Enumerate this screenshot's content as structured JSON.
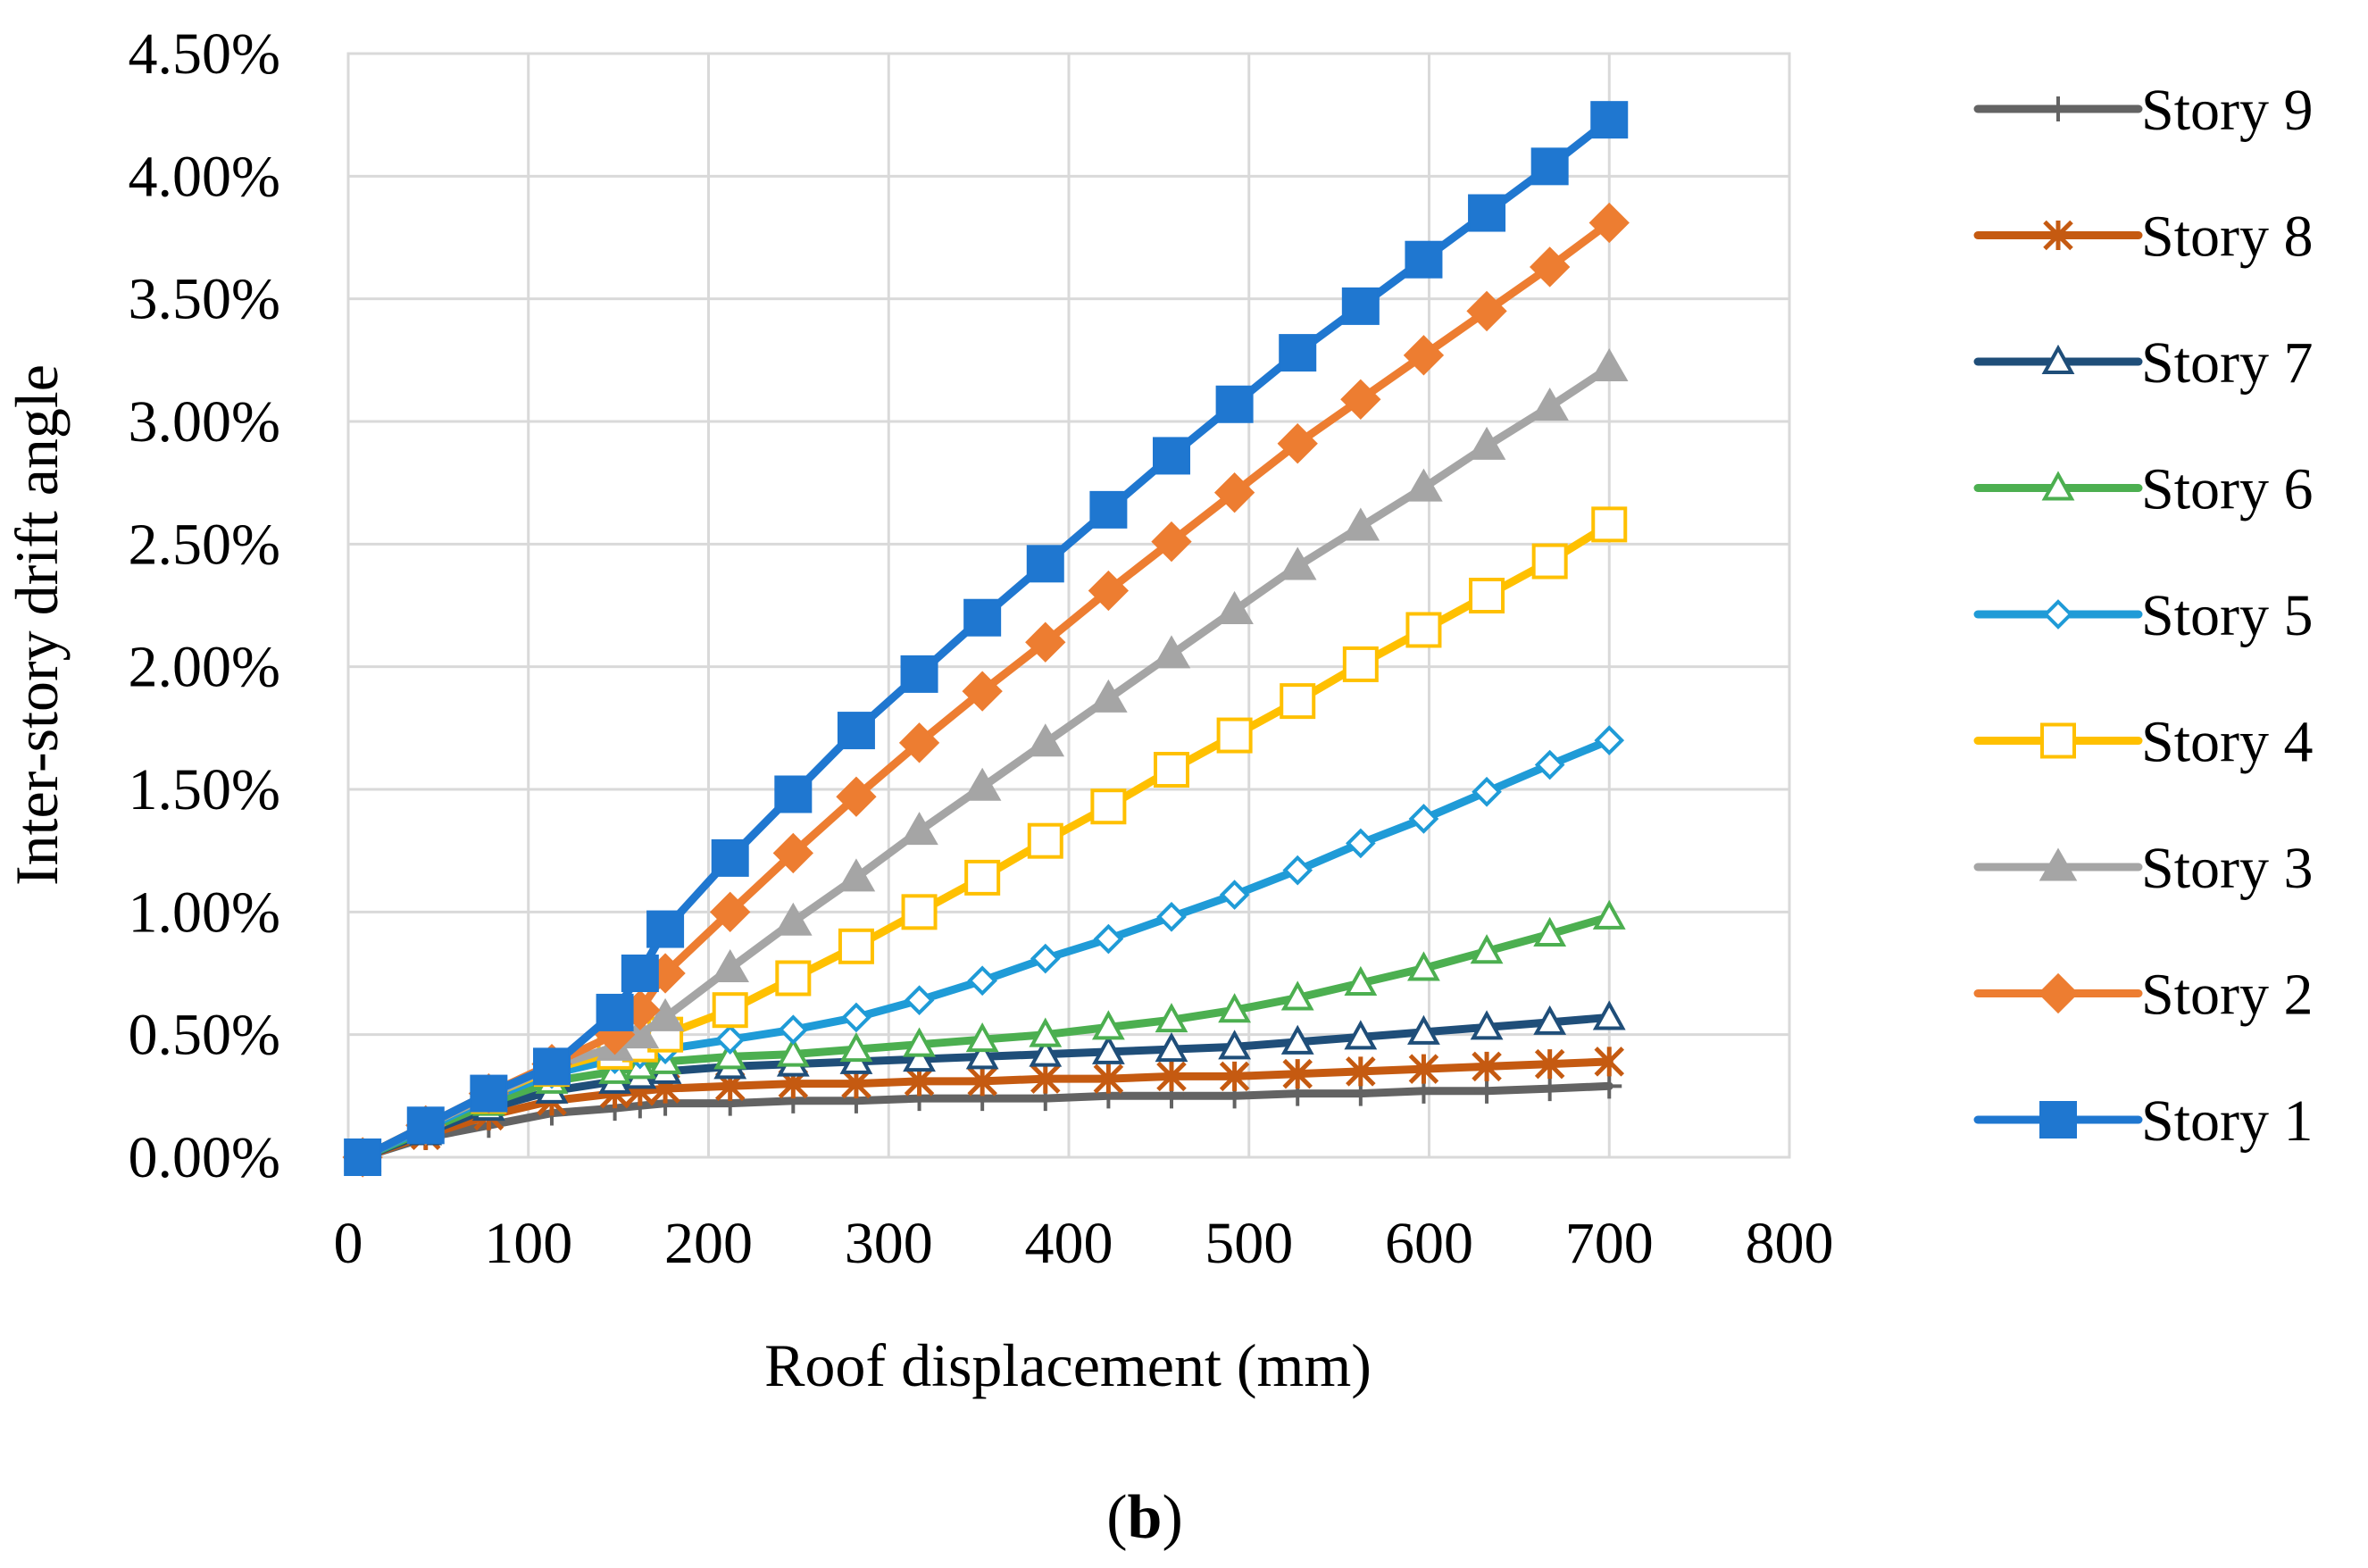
{
  "figure": {
    "caption_open": "(",
    "caption_letter": "b",
    "caption_close": ")"
  },
  "chart_data": {
    "type": "line",
    "title": "",
    "xlabel": "Roof displacement (mm)",
    "ylabel": "Inter-story drift angle",
    "xlim": [
      0,
      800
    ],
    "ylim": [
      0,
      4.5
    ],
    "x_ticks": [
      0,
      100,
      200,
      300,
      400,
      500,
      600,
      700,
      800
    ],
    "x_tick_labels": [
      "0",
      "100",
      "200",
      "300",
      "400",
      "500",
      "600",
      "700",
      "800"
    ],
    "y_ticks": [
      0,
      0.5,
      1,
      1.5,
      2,
      2.5,
      3,
      3.5,
      4,
      4.5
    ],
    "y_tick_labels": [
      "0.00%",
      "0.50%",
      "1.00%",
      "1.50%",
      "2.00%",
      "2.50%",
      "3.00%",
      "3.50%",
      "4.00%",
      "4.50%"
    ],
    "grid": true,
    "legend_position": "right",
    "x": [
      8,
      43,
      78,
      113,
      148,
      162,
      176,
      212,
      247,
      282,
      317,
      352,
      387,
      422,
      457,
      492,
      527,
      562,
      597,
      632,
      667,
      700
    ],
    "series": [
      {
        "name": "Story 9",
        "color": "#636363",
        "marker": "plus",
        "values": [
          0.0,
          0.08,
          0.13,
          0.18,
          0.2,
          0.21,
          0.22,
          0.22,
          0.23,
          0.23,
          0.24,
          0.24,
          0.24,
          0.25,
          0.25,
          0.25,
          0.26,
          0.26,
          0.27,
          0.27,
          0.28,
          0.29
        ]
      },
      {
        "name": "Story 8",
        "color": "#C55A11",
        "marker": "asterisk",
        "values": [
          0.0,
          0.09,
          0.17,
          0.23,
          0.26,
          0.27,
          0.28,
          0.29,
          0.3,
          0.3,
          0.31,
          0.31,
          0.32,
          0.32,
          0.33,
          0.33,
          0.34,
          0.35,
          0.36,
          0.37,
          0.38,
          0.39
        ]
      },
      {
        "name": "Story 7",
        "color": "#1F4E79",
        "marker": "triangle-open",
        "values": [
          0.0,
          0.1,
          0.2,
          0.27,
          0.31,
          0.33,
          0.35,
          0.37,
          0.38,
          0.39,
          0.4,
          0.41,
          0.42,
          0.43,
          0.44,
          0.45,
          0.47,
          0.49,
          0.51,
          0.53,
          0.55,
          0.57
        ]
      },
      {
        "name": "Story 6",
        "color": "#4CAF50",
        "marker": "triangle-open",
        "values": [
          0.0,
          0.11,
          0.22,
          0.31,
          0.35,
          0.37,
          0.39,
          0.41,
          0.42,
          0.44,
          0.46,
          0.48,
          0.5,
          0.53,
          0.56,
          0.6,
          0.65,
          0.71,
          0.77,
          0.84,
          0.91,
          0.98
        ]
      },
      {
        "name": "Story 5",
        "color": "#1F9BD7",
        "marker": "diamond-open",
        "values": [
          0.0,
          0.12,
          0.24,
          0.34,
          0.4,
          0.42,
          0.44,
          0.48,
          0.52,
          0.57,
          0.64,
          0.72,
          0.81,
          0.89,
          0.98,
          1.07,
          1.17,
          1.28,
          1.38,
          1.49,
          1.6,
          1.7
        ]
      },
      {
        "name": "Story 4",
        "color": "#FFC000",
        "marker": "square-open",
        "values": [
          0.0,
          0.13,
          0.25,
          0.36,
          0.43,
          0.46,
          0.5,
          0.6,
          0.73,
          0.86,
          1.0,
          1.14,
          1.29,
          1.43,
          1.58,
          1.72,
          1.86,
          2.01,
          2.15,
          2.29,
          2.43,
          2.58
        ]
      },
      {
        "name": "Story 3",
        "color": "#A5A5A5",
        "marker": "triangle",
        "values": [
          0.0,
          0.13,
          0.25,
          0.37,
          0.45,
          0.5,
          0.57,
          0.77,
          0.96,
          1.14,
          1.33,
          1.51,
          1.69,
          1.87,
          2.05,
          2.23,
          2.41,
          2.57,
          2.73,
          2.9,
          3.06,
          3.22
        ]
      },
      {
        "name": "Story 2",
        "color": "#ED7D31",
        "marker": "diamond",
        "values": [
          0.0,
          0.13,
          0.26,
          0.38,
          0.5,
          0.6,
          0.75,
          1.0,
          1.24,
          1.47,
          1.69,
          1.9,
          2.1,
          2.31,
          2.51,
          2.71,
          2.91,
          3.09,
          3.27,
          3.45,
          3.63,
          3.81
        ]
      },
      {
        "name": "Story 1",
        "color": "#1F77D0",
        "marker": "square",
        "values": [
          0.0,
          0.13,
          0.26,
          0.37,
          0.59,
          0.75,
          0.93,
          1.22,
          1.48,
          1.74,
          1.97,
          2.2,
          2.42,
          2.64,
          2.86,
          3.07,
          3.28,
          3.47,
          3.66,
          3.85,
          4.04,
          4.23
        ]
      }
    ],
    "legend_order": [
      "Story 9",
      "Story 8",
      "Story 7",
      "Story 6",
      "Story 5",
      "Story 4",
      "Story 3",
      "Story 2",
      "Story 1"
    ]
  }
}
